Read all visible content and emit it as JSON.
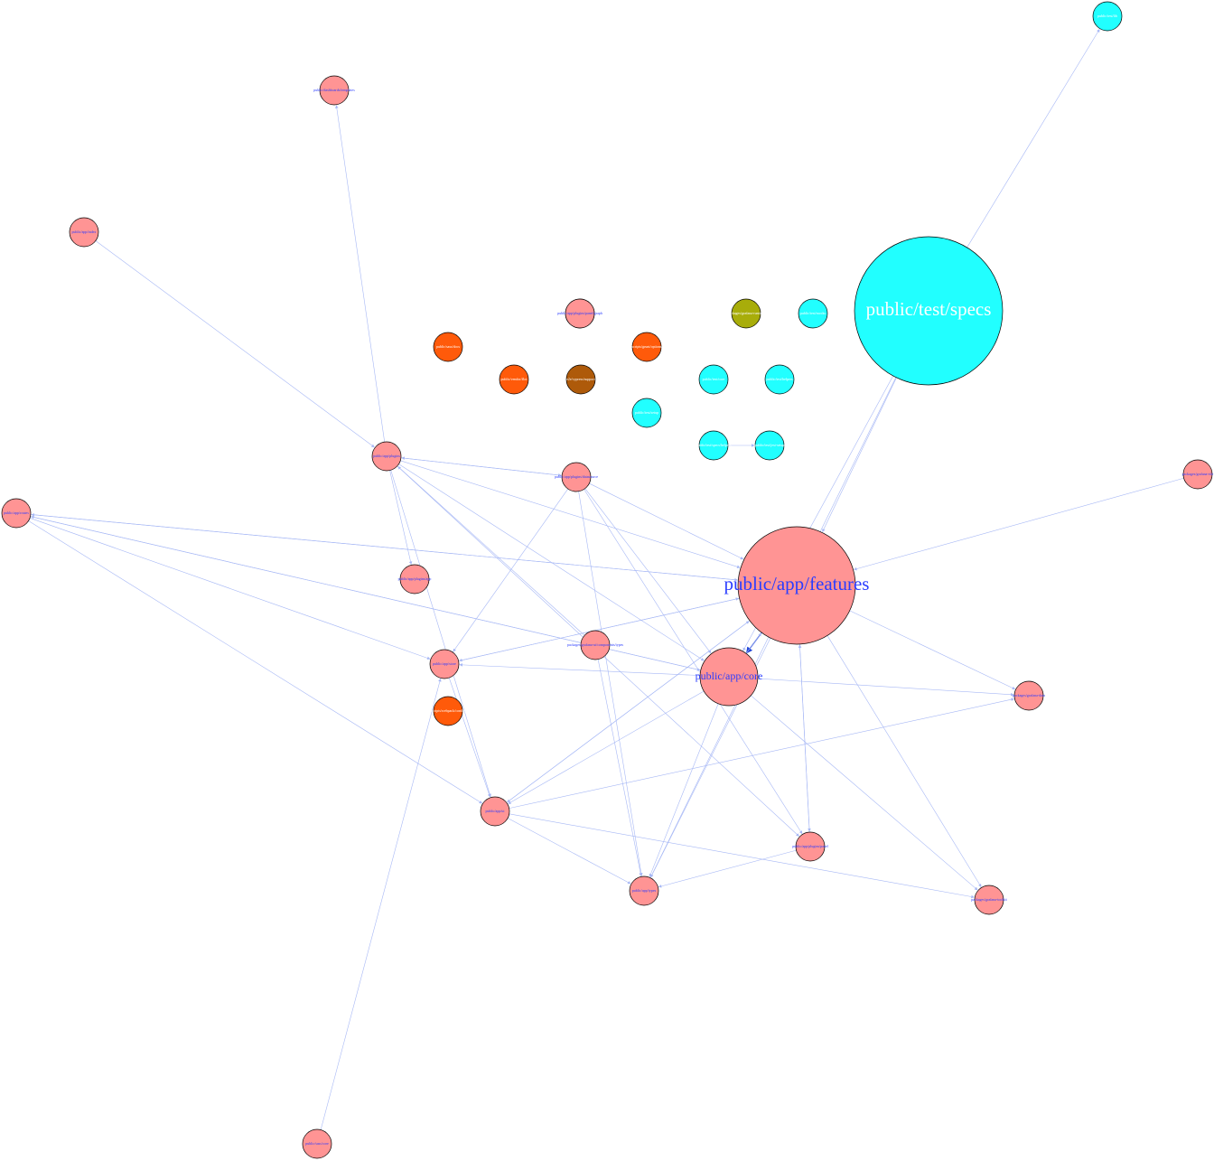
{
  "graph": {
    "colors": {
      "app_node": "#ff9494",
      "test_node": "#21ffff",
      "orange_node": "#ff5a0a",
      "brown_node": "#ae5a0a",
      "olive_node": "#a8ad0a",
      "edge": "#a7b8f5",
      "edge_heavy": "#1f43d6",
      "label_blue": "#2a3cff",
      "label_white": "#ffffff"
    },
    "nodes": [
      {
        "id": "test-specs",
        "label": "public/test/specs",
        "group": "test",
        "label_color": "white",
        "size": "large"
      },
      {
        "id": "app-features",
        "label": "public/app/features",
        "group": "app",
        "label_color": "blue",
        "size": "large"
      },
      {
        "id": "app-core",
        "label": "public/app/core",
        "group": "app",
        "label_color": "blue",
        "size": "medium"
      },
      {
        "id": "test-small-top-right",
        "label": "public/test/lib",
        "group": "test",
        "label_color": "white",
        "size": "small"
      },
      {
        "id": "test-a",
        "label": "public/test/mocks",
        "group": "test",
        "label_color": "white",
        "size": "small"
      },
      {
        "id": "test-b",
        "label": "public/test/helpers",
        "group": "test",
        "label_color": "white",
        "size": "small"
      },
      {
        "id": "test-c",
        "label": "public/test/core",
        "group": "test",
        "label_color": "white",
        "size": "small"
      },
      {
        "id": "test-d",
        "label": "public/test/specs/helpers",
        "group": "test",
        "label_color": "white",
        "size": "small"
      },
      {
        "id": "test-e",
        "label": "public/test/jest-setup",
        "group": "test",
        "label_color": "white",
        "size": "small"
      },
      {
        "id": "test-f",
        "label": "public/test/setup",
        "group": "test",
        "label_color": "white",
        "size": "small"
      },
      {
        "id": "olive-1",
        "label": "packages/grafana-runtime",
        "group": "olive",
        "label_color": "white",
        "size": "small"
      },
      {
        "id": "brown-1",
        "label": "e2e/cypress/support",
        "group": "brown",
        "label_color": "white",
        "size": "small"
      },
      {
        "id": "orange-1",
        "label": "public/sass/docs",
        "group": "orange",
        "label_color": "white",
        "size": "small"
      },
      {
        "id": "orange-2",
        "label": "scripts/grunt/options",
        "group": "orange",
        "label_color": "white",
        "size": "small"
      },
      {
        "id": "orange-3",
        "label": "public/vendor/flot",
        "group": "orange",
        "label_color": "white",
        "size": "small"
      },
      {
        "id": "orange-4",
        "label": "scripts/webpack/config",
        "group": "orange",
        "label_color": "white",
        "size": "small"
      },
      {
        "id": "app-dashboards",
        "label": "public/dashboards/templates",
        "group": "app",
        "label_color": "blue",
        "size": "small"
      },
      {
        "id": "app-index",
        "label": "public/app/index",
        "group": "app",
        "label_color": "blue",
        "size": "small"
      },
      {
        "id": "app-plugins",
        "label": "public/app/plugins",
        "group": "app",
        "label_color": "blue",
        "size": "small"
      },
      {
        "id": "app-routes",
        "label": "public/app/routes",
        "group": "app",
        "label_color": "blue",
        "size": "small"
      },
      {
        "id": "app-plugins-panel",
        "label": "public/app/plugins/panel",
        "group": "app",
        "label_color": "blue",
        "size": "small"
      },
      {
        "id": "app-plugins-ds",
        "label": "public/app/plugins/datasource",
        "group": "app",
        "label_color": "blue",
        "size": "small"
      },
      {
        "id": "app-e2e",
        "label": "packages/grafana-e2e",
        "group": "app",
        "label_color": "blue",
        "size": "small"
      },
      {
        "id": "app-plugins-app",
        "label": "public/app/plugins/app",
        "group": "app",
        "label_color": "blue",
        "size": "small"
      },
      {
        "id": "app-types-pkg",
        "label": "packages/grafana-ui/components/types",
        "group": "app",
        "label_color": "blue",
        "size": "small"
      },
      {
        "id": "app-store",
        "label": "public/app/store",
        "group": "app",
        "label_color": "blue",
        "size": "small"
      },
      {
        "id": "app-data",
        "label": "packages/grafana-data",
        "group": "app",
        "label_color": "blue",
        "size": "small"
      },
      {
        "id": "app-ui",
        "label": "public/app/ui",
        "group": "app",
        "label_color": "blue",
        "size": "small"
      },
      {
        "id": "app-stories",
        "label": "public/app/stories",
        "group": "app",
        "label_color": "blue",
        "size": "small"
      },
      {
        "id": "app-types",
        "label": "public/app/types",
        "group": "app",
        "label_color": "blue",
        "size": "small"
      },
      {
        "id": "app-toolkit",
        "label": "packages/grafana-toolkit",
        "group": "app",
        "label_color": "blue",
        "size": "small"
      },
      {
        "id": "app-sass",
        "label": "public/sass/core",
        "group": "app",
        "label_color": "blue",
        "size": "small"
      },
      {
        "id": "app-plugins-panel-2",
        "label": "public/app/plugins/panel/graph",
        "group": "app",
        "label_color": "blue",
        "size": "small"
      }
    ],
    "edges": [
      [
        "test-specs",
        "test-small-top-right"
      ],
      [
        "test-specs",
        "app-features"
      ],
      [
        "test-specs",
        "app-core"
      ],
      [
        "test-specs",
        "app-types"
      ],
      [
        "app-features",
        "app-core",
        "heavy"
      ],
      [
        "app-features",
        "app-plugins-panel"
      ],
      [
        "app-features",
        "app-routes"
      ],
      [
        "app-features",
        "app-store"
      ],
      [
        "app-features",
        "app-data"
      ],
      [
        "app-features",
        "app-ui"
      ],
      [
        "app-features",
        "app-toolkit"
      ],
      [
        "app-features",
        "app-types"
      ],
      [
        "app-core",
        "app-features"
      ],
      [
        "app-core",
        "app-routes"
      ],
      [
        "app-core",
        "app-store"
      ],
      [
        "app-core",
        "app-types"
      ],
      [
        "app-core",
        "app-ui"
      ],
      [
        "app-core",
        "app-toolkit"
      ],
      [
        "app-core",
        "app-data"
      ],
      [
        "app-plugins",
        "app-features"
      ],
      [
        "app-plugins",
        "app-core"
      ],
      [
        "app-plugins",
        "app-plugins-ds"
      ],
      [
        "app-plugins",
        "app-plugins-app"
      ],
      [
        "app-plugins",
        "app-dashboards"
      ],
      [
        "app-plugins",
        "app-ui"
      ],
      [
        "app-plugins-ds",
        "app-plugins"
      ],
      [
        "app-plugins-ds",
        "app-features"
      ],
      [
        "app-plugins-ds",
        "app-core"
      ],
      [
        "app-plugins-ds",
        "app-store"
      ],
      [
        "app-plugins-ds",
        "app-types"
      ],
      [
        "app-plugins-ds",
        "app-plugins-panel"
      ],
      [
        "app-index",
        "app-plugins"
      ],
      [
        "app-e2e",
        "app-features"
      ],
      [
        "app-types-pkg",
        "app-plugins"
      ],
      [
        "app-types-pkg",
        "app-types"
      ],
      [
        "app-plugins-panel",
        "app-features"
      ],
      [
        "app-plugins-panel",
        "app-types"
      ],
      [
        "app-routes",
        "app-features"
      ],
      [
        "app-routes",
        "app-store"
      ],
      [
        "app-routes",
        "app-core"
      ],
      [
        "app-routes",
        "app-ui"
      ],
      [
        "app-store",
        "app-ui"
      ],
      [
        "app-store",
        "app-features"
      ],
      [
        "app-sass",
        "app-store"
      ],
      [
        "app-ui",
        "app-features"
      ],
      [
        "app-ui",
        "app-types"
      ],
      [
        "app-ui",
        "app-data"
      ],
      [
        "app-ui",
        "app-toolkit"
      ],
      [
        "app-plugins",
        "app-plugins-panel"
      ],
      [
        "test-d",
        "test-e"
      ]
    ]
  }
}
